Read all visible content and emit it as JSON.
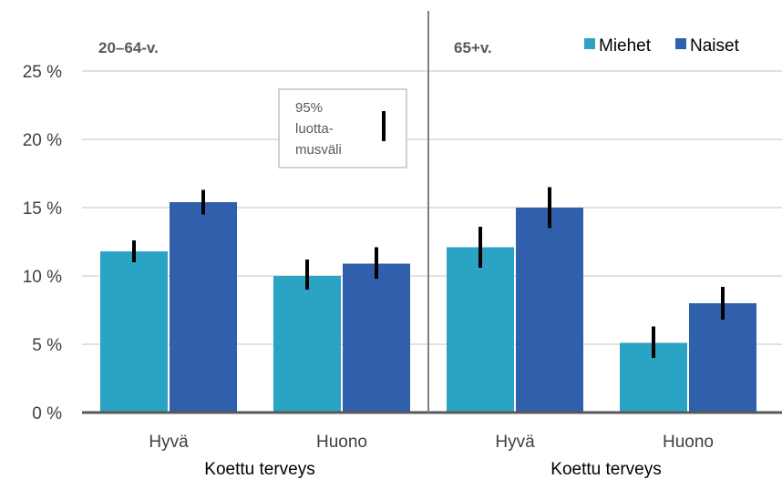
{
  "chart_data": {
    "type": "bar",
    "ylim": [
      0,
      25
    ],
    "yticks": [
      0,
      5,
      10,
      15,
      20,
      25
    ],
    "ytick_labels": [
      "0 %",
      "5 %",
      "10 %",
      "15 %",
      "20 %",
      "25 %"
    ],
    "grid": true,
    "colors": {
      "Miehet": "#2aa3c4",
      "Naiset": "#3060ac"
    },
    "legend": {
      "position": "top-right",
      "entries": [
        "Miehet",
        "Naiset"
      ]
    },
    "ci_legend": [
      "95%",
      "luotta-",
      "musväli"
    ],
    "panels": [
      {
        "title": "20–64-v.",
        "xlabel": "Koettu terveys",
        "categories": [
          "Hyvä",
          "Huono"
        ],
        "series": [
          {
            "name": "Miehet",
            "values": [
              11.8,
              10.0
            ],
            "ci_low": [
              11.0,
              9.0
            ],
            "ci_high": [
              12.6,
              11.2
            ]
          },
          {
            "name": "Naiset",
            "values": [
              15.4,
              10.9
            ],
            "ci_low": [
              14.5,
              9.8
            ],
            "ci_high": [
              16.3,
              12.1
            ]
          }
        ]
      },
      {
        "title": "65+v.",
        "xlabel": "Koettu terveys",
        "categories": [
          "Hyvä",
          "Huono"
        ],
        "series": [
          {
            "name": "Miehet",
            "values": [
              12.1,
              5.1
            ],
            "ci_low": [
              10.6,
              4.0
            ],
            "ci_high": [
              13.6,
              6.3
            ]
          },
          {
            "name": "Naiset",
            "values": [
              15.0,
              8.0
            ],
            "ci_low": [
              13.5,
              6.8
            ],
            "ci_high": [
              16.5,
              9.2
            ]
          }
        ]
      }
    ]
  }
}
